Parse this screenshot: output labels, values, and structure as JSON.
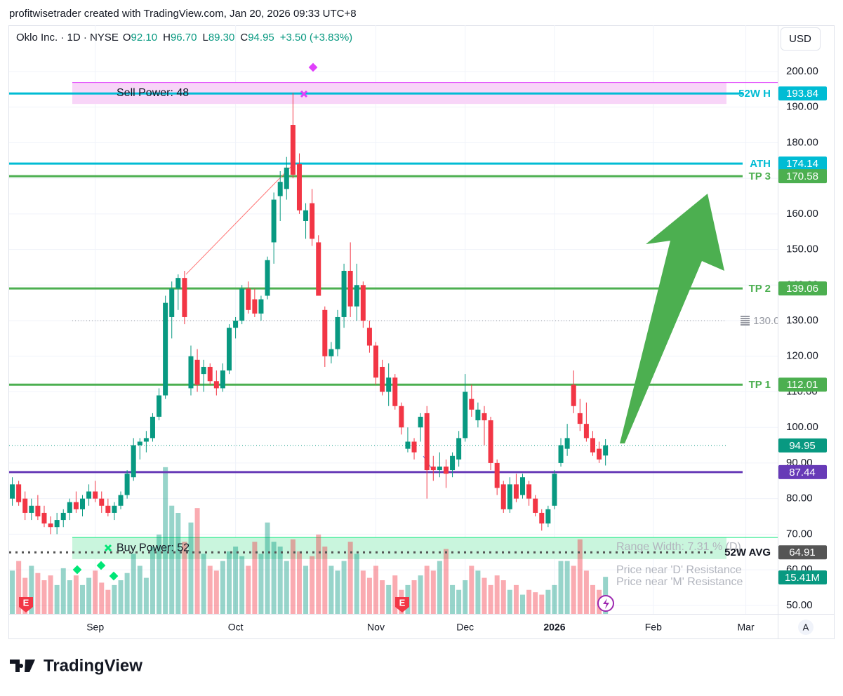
{
  "header": {
    "credit": "profitwisetrader created with TradingView.com, Jan 20, 2026 09:33 UTC+8",
    "symbol": "Oklo Inc. · 1D · NYSE",
    "ohlc": [
      {
        "key": "O",
        "value": "92.10"
      },
      {
        "key": "H",
        "value": "96.70"
      },
      {
        "key": "L",
        "value": "89.30"
      },
      {
        "key": "C",
        "value": "94.95"
      }
    ],
    "change": "+3.50 (+3.83%)",
    "currency": "USD"
  },
  "footer": {
    "logo": "TradingView",
    "scale_button": "A"
  },
  "chart_data": {
    "type": "candlestick",
    "up_color": "#089981",
    "down_color": "#f23645",
    "xlim": [
      -0.5,
      120
    ],
    "xticks": [
      {
        "value": 13,
        "label": "Sep"
      },
      {
        "value": 35,
        "label": "Oct"
      },
      {
        "value": 57,
        "label": "Nov"
      },
      {
        "value": 71,
        "label": "Dec"
      },
      {
        "value": 85,
        "label": "2026"
      },
      {
        "value": 100.5,
        "label": "Feb"
      },
      {
        "value": 115,
        "label": "Mar"
      }
    ],
    "ylim": [
      47.6,
      213
    ],
    "yticks": [
      {
        "value": 50,
        "label": "50.00"
      },
      {
        "value": 60,
        "label": "60.00"
      },
      {
        "value": 70,
        "label": "70.00"
      },
      {
        "value": 80,
        "label": "80.00"
      },
      {
        "value": 90,
        "label": "90.00"
      },
      {
        "value": 100,
        "label": "100.00"
      },
      {
        "value": 110,
        "label": "110.00"
      },
      {
        "value": 120,
        "label": "120.00"
      },
      {
        "value": 130,
        "label": "130.00"
      },
      {
        "value": 140,
        "label": "140.00"
      },
      {
        "value": 150,
        "label": "150.00"
      },
      {
        "value": 160,
        "label": "160.00"
      },
      {
        "value": 170,
        "label": "170.00"
      },
      {
        "value": 180,
        "label": "180.00"
      },
      {
        "value": 190,
        "label": "190.00"
      },
      {
        "value": 200,
        "label": "200.00"
      }
    ],
    "grid": true,
    "candles": {
      "open": [
        80,
        84,
        80,
        76,
        78,
        76,
        73,
        72,
        74,
        76,
        79,
        77,
        80,
        82,
        80,
        78,
        76,
        78,
        81,
        86,
        95,
        96,
        97,
        103,
        109,
        131,
        139,
        142,
        111,
        119,
        115,
        117,
        113,
        111,
        116,
        128,
        130,
        139,
        136,
        132,
        137,
        152,
        165,
        167,
        185,
        174,
        158,
        163,
        152,
        133,
        120,
        122,
        131,
        144,
        134,
        140,
        128,
        123,
        117,
        110,
        114,
        106,
        94,
        96,
        100,
        104,
        89,
        88,
        89,
        88,
        91,
        97,
        108,
        102,
        104,
        102,
        90,
        84,
        77,
        84,
        81,
        84,
        80,
        76,
        73,
        78,
        90,
        94,
        112,
        104,
        101,
        97,
        94,
        92.1
      ],
      "high": [
        86,
        85,
        82,
        80,
        81,
        78,
        75,
        76,
        77,
        80,
        82,
        81,
        84,
        85,
        82,
        80,
        79,
        82,
        88,
        97,
        97,
        99,
        104,
        111,
        137,
        141,
        143,
        144,
        123,
        122,
        119,
        118,
        116,
        118,
        129,
        131,
        140,
        141,
        139,
        137,
        148,
        166,
        172,
        176,
        194,
        177,
        163,
        167,
        154,
        134,
        124,
        133,
        146,
        152,
        146,
        141,
        130,
        124,
        119,
        118,
        115,
        107,
        100,
        97,
        104,
        106,
        92,
        93,
        91,
        93,
        99,
        115,
        112,
        107,
        106,
        103,
        91,
        85,
        86,
        87,
        87,
        85,
        81,
        77,
        78,
        88,
        97,
        101,
        116,
        108,
        107,
        99,
        96,
        96.7
      ],
      "low": [
        78,
        78,
        74,
        74,
        74,
        72,
        70,
        70,
        72,
        74,
        76,
        75,
        78,
        79,
        76,
        75,
        74,
        77,
        80,
        85,
        91,
        93,
        96,
        102,
        108,
        125,
        133,
        129,
        109,
        110,
        110,
        112,
        109,
        110,
        115,
        125,
        129,
        132,
        131,
        130,
        136,
        146,
        158,
        164,
        170,
        160,
        153,
        151,
        137,
        117,
        118,
        120,
        128,
        131,
        130,
        128,
        121,
        112,
        109,
        106,
        105,
        98,
        93,
        91,
        96,
        80,
        85,
        86,
        83,
        86,
        89,
        96,
        103,
        100,
        95,
        88,
        81,
        76,
        76,
        79,
        80,
        78,
        75,
        71,
        72,
        77,
        89,
        92,
        104,
        99,
        96,
        92,
        90,
        89.3
      ],
      "close": [
        84,
        79,
        76,
        78,
        75,
        73,
        72,
        74,
        76,
        79,
        77,
        80,
        82,
        80,
        78,
        76,
        78,
        81,
        87,
        95,
        96,
        97,
        103,
        109,
        135,
        139,
        142,
        131,
        120,
        112,
        117,
        113,
        111,
        116,
        128,
        130,
        139,
        133,
        132,
        136,
        147,
        164,
        169,
        173,
        171,
        161,
        161,
        153,
        137,
        120,
        122,
        131,
        144,
        134,
        140,
        130,
        123,
        114,
        110,
        114,
        106,
        100,
        96,
        93,
        103,
        88,
        88,
        89,
        87,
        92,
        97,
        110,
        105,
        105,
        102,
        90,
        83,
        77,
        84,
        80,
        86,
        80,
        76,
        73,
        77,
        87,
        95,
        97,
        106,
        101,
        97,
        93,
        91,
        94.95
      ]
    },
    "volume": {
      "values": [
        18,
        22,
        15,
        20,
        17,
        14,
        16,
        12,
        19,
        14,
        16,
        12,
        15,
        18,
        13,
        10,
        12,
        14,
        17,
        25,
        20,
        15,
        28,
        33,
        61,
        45,
        42,
        30,
        38,
        44,
        25,
        20,
        18,
        22,
        26,
        28,
        24,
        20,
        30,
        25,
        38,
        30,
        28,
        22,
        31,
        26,
        20,
        24,
        33,
        28,
        20,
        18,
        22,
        30,
        25,
        18,
        15,
        20,
        14,
        12,
        16,
        10,
        12,
        14,
        16,
        20,
        18,
        22,
        27,
        12,
        10,
        14,
        20,
        18,
        15,
        12,
        16,
        14,
        10,
        12,
        8,
        10,
        9,
        8,
        10,
        12,
        22,
        22,
        20,
        31,
        18,
        12,
        10,
        15.41
      ],
      "volume_lim": [
        0,
        70
      ],
      "label": "15.41M",
      "color": "#089981"
    },
    "levels": [
      {
        "name": "52W H",
        "value": 193.84,
        "label": "193.84",
        "color": "#00bcd4",
        "style": "solid"
      },
      {
        "name": "ATH",
        "value": 174.14,
        "label": "174.14",
        "color": "#00bcd4",
        "style": "solid"
      },
      {
        "name": "TP 3",
        "value": 170.58,
        "label": "170.58",
        "color": "#4caf50",
        "style": "solid"
      },
      {
        "name": "TP 2",
        "value": 139.06,
        "label": "139.06",
        "color": "#4caf50",
        "style": "solid"
      },
      {
        "value": 130,
        "label": "130.00",
        "color": "#9598a1",
        "style": "dotted"
      },
      {
        "name": "TP 1",
        "value": 112.01,
        "label": "112.01",
        "color": "#4caf50",
        "style": "solid"
      },
      {
        "value": 94.95,
        "label": "94.95",
        "color": "#089981",
        "style": "dotted"
      },
      {
        "value": 87.44,
        "label": "87.44",
        "color": "#673ab7",
        "style": "solid"
      },
      {
        "name": "52W AVG",
        "value": 64.91,
        "label": "64.91",
        "color": "#555555",
        "style": "dotted-thick"
      }
    ],
    "zones": [
      {
        "label": "Sell Power: 48",
        "from": 190.9,
        "to": 196.9,
        "color": "#f8d5f8"
      },
      {
        "label": "Buy Power: 52",
        "from": 63,
        "to": 69.1,
        "color": "#c9f5dd"
      }
    ],
    "notes": [
      "Range Width:  7.31 % (D)",
      "Price near 'D' Resistance",
      "Price near 'M' Resistance"
    ],
    "earnings_marker": "E"
  }
}
